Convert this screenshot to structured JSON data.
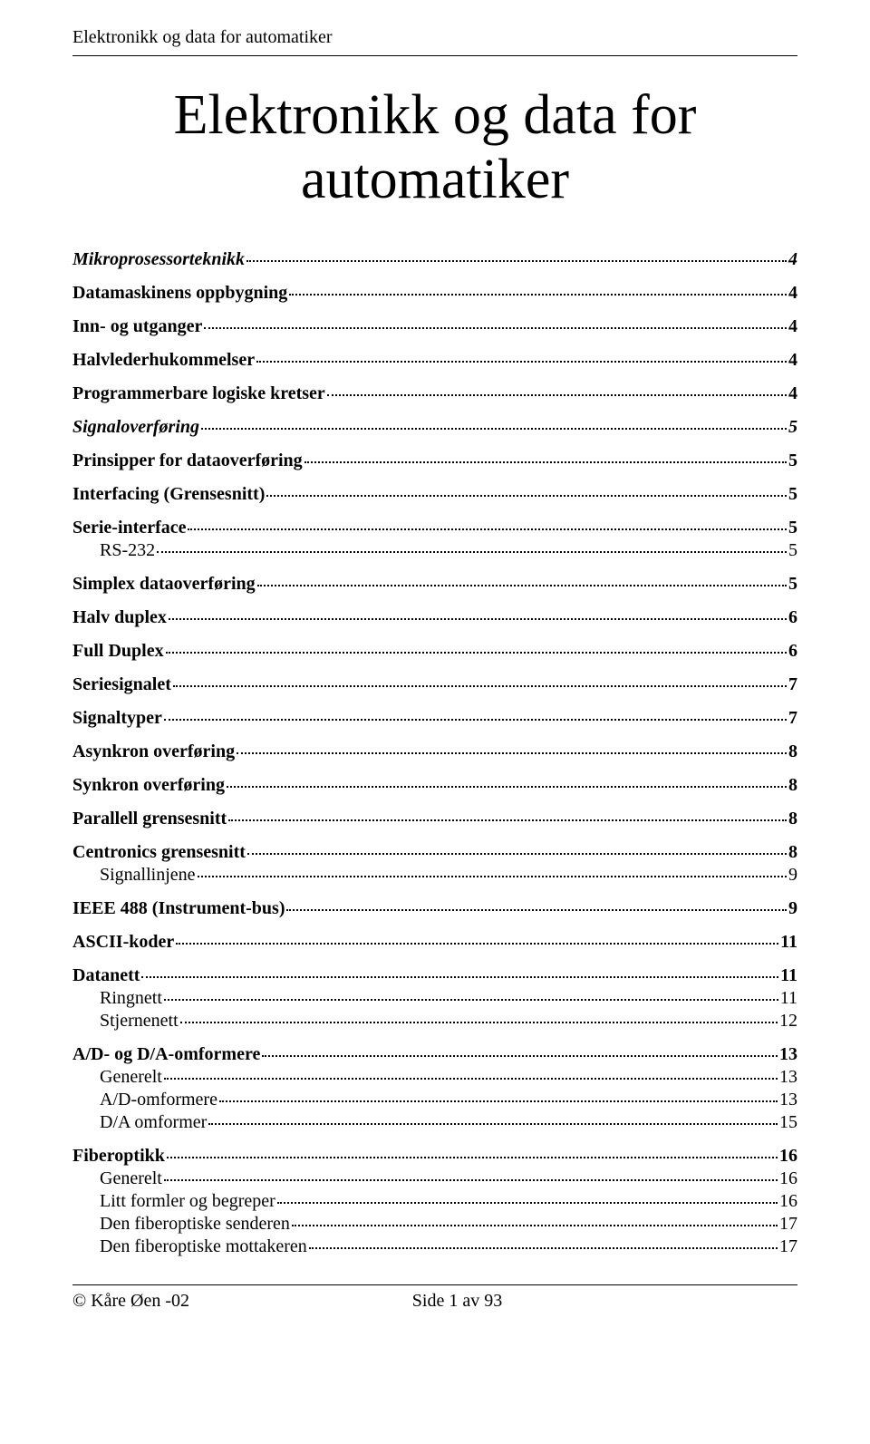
{
  "header": "Elektronikk og data for automatiker",
  "title_line1": "Elektronikk og data for",
  "title_line2": "automatiker",
  "toc": [
    {
      "level": 1,
      "label": "Mikroprosessorteknikk",
      "page": "4"
    },
    {
      "level": 2,
      "label": "Datamaskinens oppbygning",
      "page": "4"
    },
    {
      "level": 2,
      "label": "Inn- og utganger",
      "page": "4"
    },
    {
      "level": 2,
      "label": "Halvlederhukommelser",
      "page": "4"
    },
    {
      "level": 2,
      "label": "Programmerbare logiske kretser",
      "page": "4"
    },
    {
      "level": 1,
      "label": "Signaloverføring",
      "page": "5"
    },
    {
      "level": 2,
      "label": "Prinsipper for dataoverføring",
      "page": "5"
    },
    {
      "level": 2,
      "label": "Interfacing (Grensesnitt)",
      "page": "5"
    },
    {
      "level": 2,
      "label": "Serie-interface",
      "page": "5"
    },
    {
      "level": 3,
      "label": "RS-232",
      "page": "5"
    },
    {
      "level": 2,
      "label": "Simplex dataoverføring",
      "page": "5"
    },
    {
      "level": 2,
      "label": "Halv duplex",
      "page": "6"
    },
    {
      "level": 2,
      "label": "Full Duplex",
      "page": "6"
    },
    {
      "level": 2,
      "label": "Seriesignalet",
      "page": "7"
    },
    {
      "level": 2,
      "label": "Signaltyper",
      "page": "7"
    },
    {
      "level": 2,
      "label": "Asynkron overføring",
      "page": "8"
    },
    {
      "level": 2,
      "label": "Synkron overføring",
      "page": "8"
    },
    {
      "level": 2,
      "label": "Parallell grensesnitt",
      "page": "8"
    },
    {
      "level": 2,
      "label": "Centronics grensesnitt",
      "page": "8"
    },
    {
      "level": 3,
      "label": "Signallinjene",
      "page": "9"
    },
    {
      "level": 2,
      "label": "IEEE 488  (Instrument-bus)",
      "page": "9"
    },
    {
      "level": 2,
      "label": "ASCII-koder",
      "page": "11"
    },
    {
      "level": 2,
      "label": "Datanett",
      "page": "11"
    },
    {
      "level": 3,
      "label": "Ringnett",
      "page": "11"
    },
    {
      "level": 3,
      "label": "Stjernenett",
      "page": "12"
    },
    {
      "level": 2,
      "label": "A/D- og D/A-omformere",
      "page": "13"
    },
    {
      "level": 3,
      "label": "Generelt",
      "page": "13"
    },
    {
      "level": 3,
      "label": "A/D-omformere",
      "page": "13"
    },
    {
      "level": 3,
      "label": "D/A omformer",
      "page": "15"
    },
    {
      "level": 2,
      "label": "Fiberoptikk",
      "page": "16"
    },
    {
      "level": 3,
      "label": "Generelt",
      "page": "16"
    },
    {
      "level": 3,
      "label": "Litt formler og begreper",
      "page": "16"
    },
    {
      "level": 3,
      "label": "Den fiberoptiske senderen",
      "page": "17"
    },
    {
      "level": 3,
      "label": "Den fiberoptiske mottakeren",
      "page": "17"
    }
  ],
  "footer": {
    "left": "©  Kåre Øen  -02",
    "center": "Side 1 av 93"
  }
}
